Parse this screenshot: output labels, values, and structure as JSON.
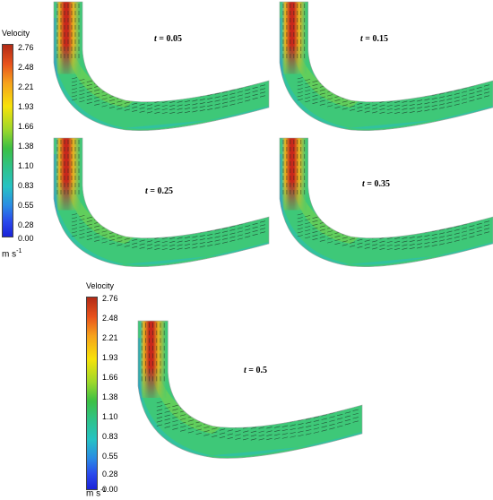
{
  "legend_title": "Velocity",
  "legend_ticks": [
    "2.76",
    "2.48",
    "2.21",
    "1.93",
    "1.66",
    "1.38",
    "1.10",
    "0.83",
    "0.55",
    "0.28",
    "0.00"
  ],
  "unit_base": "m s",
  "unit_exp": "-1",
  "time_var": "t",
  "panels": [
    {
      "time": "0.05"
    },
    {
      "time": "0.15"
    },
    {
      "time": "0.25"
    },
    {
      "time": "0.35"
    },
    {
      "time": "0.5"
    }
  ],
  "colors": {
    "jet_core": "#c8281c",
    "jet_mid": "#e8b420",
    "flow_bulk": "#3ec878",
    "flow_edge": "#30c0a8",
    "wall_low": "#2a8ae4",
    "arrow": "#1a2a22"
  }
}
